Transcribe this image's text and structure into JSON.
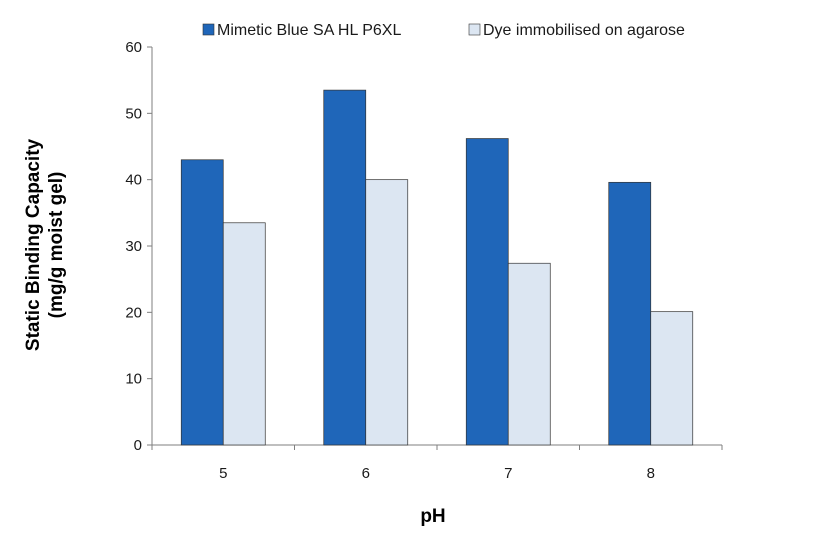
{
  "chart_data": {
    "type": "bar",
    "title": "",
    "xlabel": "pH",
    "ylabel_line1": "Static Binding Capacity",
    "ylabel_line2": "(mg/g moist gel)",
    "categories": [
      "5",
      "6",
      "7",
      "8"
    ],
    "series": [
      {
        "name": "Mimetic Blue SA HL P6XL",
        "color": "#1f66b9",
        "values": [
          43,
          53.5,
          46.2,
          39.6
        ]
      },
      {
        "name": "Dye immobilised on agarose",
        "color": "#dce6f2",
        "values": [
          33.5,
          40,
          27.4,
          20.1
        ]
      }
    ],
    "ylim": [
      0,
      60
    ],
    "yticks": [
      "0",
      "10",
      "20",
      "30",
      "40",
      "50",
      "60"
    ],
    "grid": false,
    "legend_position": "top"
  }
}
